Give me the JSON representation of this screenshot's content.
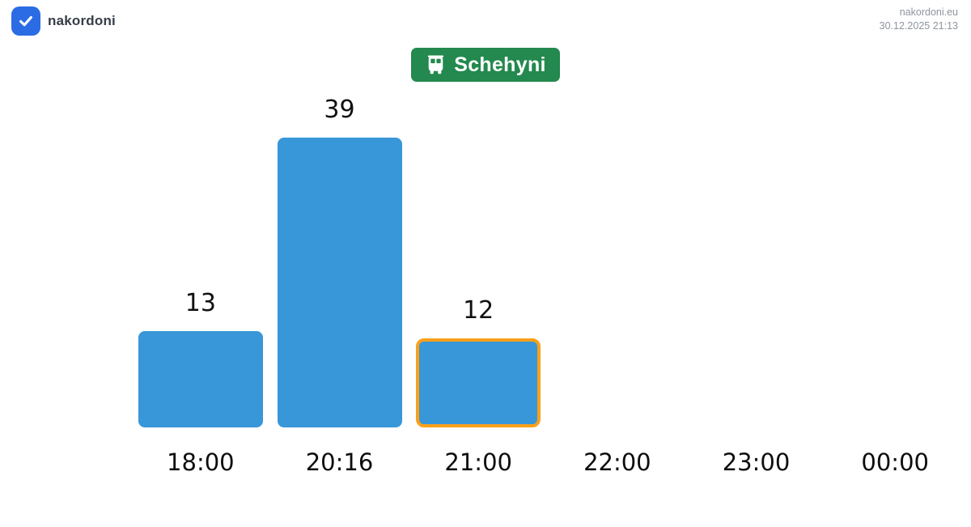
{
  "header": {
    "brand": "nakordoni",
    "site_link": "nakordoni.eu",
    "timestamp": "30.12.2025 21:13"
  },
  "badge": {
    "label": "Schehyni",
    "icon": "bus-icon"
  },
  "chart_data": {
    "type": "bar",
    "title": "Schehyni",
    "categories": [
      "18:00",
      "20:16",
      "21:00",
      "22:00",
      "23:00",
      "00:00"
    ],
    "values": [
      13,
      39,
      12,
      null,
      null,
      null
    ],
    "highlighted_index": 2,
    "highlighted_category": "21:00",
    "xlabel": "",
    "ylabel": "",
    "ylim": [
      0,
      39
    ],
    "grid": false,
    "legend": false,
    "bar_color": "#3897d9",
    "highlight_border_color": "#f9a11b",
    "value_label_color": "#111111"
  },
  "colors": {
    "logo_blue": "#2b6ce4",
    "brand_text": "#373d49",
    "muted_text": "#8e949e",
    "badge_green": "#23894e",
    "bar_blue": "#3897d9",
    "highlight_orange": "#f9a11b"
  }
}
